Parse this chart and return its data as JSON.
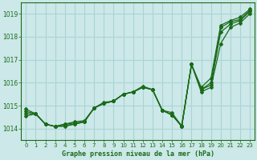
{
  "xlabel": "Graphe pression niveau de la mer (hPa)",
  "xlim": [
    -0.5,
    23.5
  ],
  "ylim": [
    1013.5,
    1019.5
  ],
  "yticks": [
    1014,
    1015,
    1016,
    1017,
    1018,
    1019
  ],
  "xticks": [
    0,
    1,
    2,
    3,
    4,
    5,
    6,
    7,
    8,
    9,
    10,
    11,
    12,
    13,
    14,
    15,
    16,
    17,
    18,
    19,
    20,
    21,
    22,
    23
  ],
  "background_color": "#cce8e8",
  "grid_color": "#aad4d4",
  "line_color": "#1a6b1a",
  "series": [
    [
      1014.55,
      1014.65,
      1014.2,
      1014.1,
      1014.1,
      1014.2,
      1014.3,
      1014.9,
      1015.1,
      1015.2,
      1015.5,
      1015.6,
      1015.8,
      1015.7,
      1014.8,
      1014.6,
      1014.1,
      1016.8,
      1015.6,
      1015.8,
      1017.7,
      1018.4,
      1018.6,
      1019.0
    ],
    [
      1014.65,
      1014.65,
      1014.2,
      1014.1,
      1014.15,
      1014.2,
      1014.3,
      1014.9,
      1015.1,
      1015.2,
      1015.5,
      1015.6,
      1015.8,
      1015.7,
      1014.8,
      1014.6,
      1014.1,
      1016.8,
      1015.7,
      1015.9,
      1018.2,
      1018.55,
      1018.7,
      1019.1
    ],
    [
      1014.75,
      1014.65,
      1014.2,
      1014.1,
      1014.2,
      1014.25,
      1014.3,
      1014.9,
      1015.1,
      1015.2,
      1015.5,
      1015.6,
      1015.8,
      1015.7,
      1014.8,
      1014.6,
      1014.15,
      1016.8,
      1015.7,
      1016.0,
      1018.4,
      1018.65,
      1018.75,
      1019.15
    ],
    [
      1014.85,
      1014.65,
      1014.2,
      1014.1,
      1014.2,
      1014.3,
      1014.35,
      1014.9,
      1015.15,
      1015.2,
      1015.5,
      1015.6,
      1015.85,
      1015.7,
      1014.8,
      1014.7,
      1014.1,
      1016.8,
      1015.8,
      1016.2,
      1018.5,
      1018.7,
      1018.85,
      1019.2
    ]
  ]
}
